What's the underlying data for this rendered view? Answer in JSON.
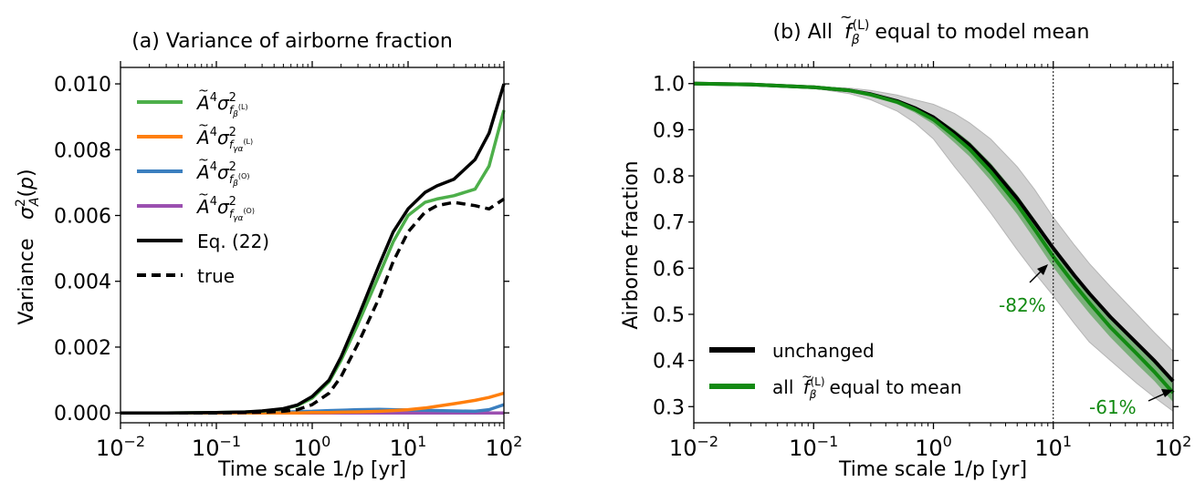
{
  "panel_a": {
    "title": "(a)   Variance of airborne fraction",
    "ylabel_text": "Variance",
    "xlabel": "Time scale 1/p [yr]",
    "y_ticks": [
      "0.000",
      "0.002",
      "0.004",
      "0.006",
      "0.008",
      "0.010"
    ],
    "legend": [
      "Ã⁴σ²(fβ(L))",
      "Ã⁴σ²(fγα(L))",
      "Ã⁴σ²(fβ(O))",
      "Ã⁴σ²(fγα(O))",
      "Eq. (22)",
      "true"
    ]
  },
  "panel_b": {
    "title_prefix": "(b)   All",
    "title_suffix": "equal to model mean",
    "ylabel": "Airborne fraction",
    "xlabel": "Time scale 1/p [yr]",
    "y_ticks": [
      "0.3",
      "0.4",
      "0.5",
      "0.6",
      "0.7",
      "0.8",
      "0.9",
      "1.0"
    ],
    "legend_unchanged": "unchanged",
    "legend_green_prefix": "all",
    "legend_green_suffix": "equal to mean",
    "annotation_1": "-82%",
    "annotation_2": "-61%"
  },
  "colors": {
    "green_light": "#4daf4a",
    "orange": "#ff7f0e",
    "blue": "#3b7fbf",
    "purple": "#9b4fb0",
    "black": "#000000",
    "dark_green": "#128a12",
    "band_gray": "#cccccc"
  },
  "chart_data": [
    {
      "type": "line",
      "title": "(a)   Variance of airborne fraction",
      "xlabel": "Time scale 1/p [yr]",
      "ylabel": "Variance  σA²(p)",
      "xscale": "log",
      "xlim": [
        0.01,
        100
      ],
      "ylim": [
        -0.0003,
        0.0105
      ],
      "x": [
        0.01,
        0.03,
        0.1,
        0.2,
        0.3,
        0.5,
        0.7,
        1,
        1.5,
        2,
        3,
        5,
        7,
        10,
        15,
        20,
        30,
        50,
        70,
        100
      ],
      "series": [
        {
          "name": "Ã⁴σ²(fβ(L))",
          "values": [
            0,
            0,
            1e-05,
            3e-05,
            5e-05,
            0.00012,
            0.00022,
            0.00045,
            0.00095,
            0.0016,
            0.0027,
            0.0042,
            0.0052,
            0.006,
            0.0064,
            0.0065,
            0.0066,
            0.0068,
            0.0075,
            0.0092
          ]
        },
        {
          "name": "Ã⁴σ²(fγα(L))",
          "values": [
            0,
            0,
            0,
            0,
            0,
            0,
            0,
            1e-05,
            1e-05,
            2e-05,
            3e-05,
            5e-05,
            7e-05,
            0.0001,
            0.00015,
            0.0002,
            0.00028,
            0.00038,
            0.00047,
            0.0006
          ]
        },
        {
          "name": "Ã⁴σ²(fβ(O))",
          "values": [
            0,
            0,
            0,
            1e-05,
            1e-05,
            2e-05,
            4e-05,
            5e-05,
            7e-05,
            8e-05,
            0.0001,
            0.00011,
            0.0001,
            9e-05,
            8e-05,
            7e-05,
            6e-05,
            5e-05,
            0.0001,
            0.00025
          ]
        },
        {
          "name": "Ã⁴σ²(fγα(O))",
          "values": [
            0,
            0,
            0,
            0,
            0,
            0,
            0,
            0,
            0,
            0,
            0,
            0,
            0,
            0,
            0,
            0,
            0,
            0,
            0,
            0
          ]
        },
        {
          "name": "Eq. (22)",
          "values": [
            0,
            0,
            1e-05,
            3e-05,
            6e-05,
            0.00013,
            0.00024,
            0.0005,
            0.001,
            0.0017,
            0.0029,
            0.0045,
            0.0055,
            0.0062,
            0.0067,
            0.0069,
            0.0071,
            0.0077,
            0.0085,
            0.01
          ]
        },
        {
          "name": "true",
          "values": [
            0,
            0,
            0,
            1e-05,
            2e-05,
            5e-05,
            0.0001,
            0.00025,
            0.0006,
            0.0011,
            0.0021,
            0.0035,
            0.0046,
            0.0055,
            0.0061,
            0.0063,
            0.0064,
            0.0063,
            0.0062,
            0.0065
          ]
        }
      ]
    },
    {
      "type": "line",
      "title": "(b)   All f̃β(L) equal to model mean",
      "xlabel": "Time scale 1/p [yr]",
      "ylabel": "Airborne fraction",
      "xscale": "log",
      "xlim": [
        0.01,
        100
      ],
      "ylim": [
        0.265,
        1.035
      ],
      "vline_x": 10,
      "x": [
        0.01,
        0.03,
        0.1,
        0.2,
        0.3,
        0.5,
        0.7,
        1,
        1.5,
        2,
        3,
        5,
        7,
        10,
        15,
        20,
        30,
        50,
        70,
        100
      ],
      "series": [
        {
          "name": "unchanged",
          "values": [
            1.0,
            0.998,
            0.992,
            0.985,
            0.977,
            0.962,
            0.947,
            0.927,
            0.893,
            0.867,
            0.82,
            0.751,
            0.699,
            0.643,
            0.584,
            0.545,
            0.494,
            0.437,
            0.399,
            0.355
          ]
        },
        {
          "name": "all f̃β(L) equal to mean",
          "values": [
            1.0,
            0.998,
            0.992,
            0.985,
            0.976,
            0.96,
            0.944,
            0.922,
            0.886,
            0.858,
            0.809,
            0.738,
            0.684,
            0.625,
            0.565,
            0.525,
            0.472,
            0.414,
            0.375,
            0.33
          ]
        }
      ],
      "bands": [
        {
          "name": "gray spread",
          "low": [
            1.0,
            0.998,
            0.99,
            0.978,
            0.965,
            0.94,
            0.915,
            0.88,
            0.82,
            0.78,
            0.72,
            0.64,
            0.59,
            0.54,
            0.48,
            0.44,
            0.4,
            0.35,
            0.32,
            0.29
          ],
          "high": [
            1.0,
            0.998,
            0.993,
            0.99,
            0.985,
            0.975,
            0.965,
            0.955,
            0.935,
            0.915,
            0.88,
            0.82,
            0.77,
            0.71,
            0.65,
            0.61,
            0.56,
            0.5,
            0.46,
            0.42
          ]
        },
        {
          "name": "green spread",
          "low": [
            1.0,
            0.998,
            0.991,
            0.982,
            0.972,
            0.955,
            0.937,
            0.912,
            0.872,
            0.842,
            0.79,
            0.717,
            0.662,
            0.602,
            0.542,
            0.502,
            0.45,
            0.392,
            0.355,
            0.31
          ],
          "high": [
            1.0,
            0.998,
            0.993,
            0.988,
            0.981,
            0.966,
            0.951,
            0.931,
            0.9,
            0.874,
            0.828,
            0.759,
            0.706,
            0.648,
            0.588,
            0.548,
            0.494,
            0.436,
            0.395,
            0.35
          ]
        }
      ],
      "annotations": [
        "-82%",
        "-61%"
      ]
    }
  ]
}
